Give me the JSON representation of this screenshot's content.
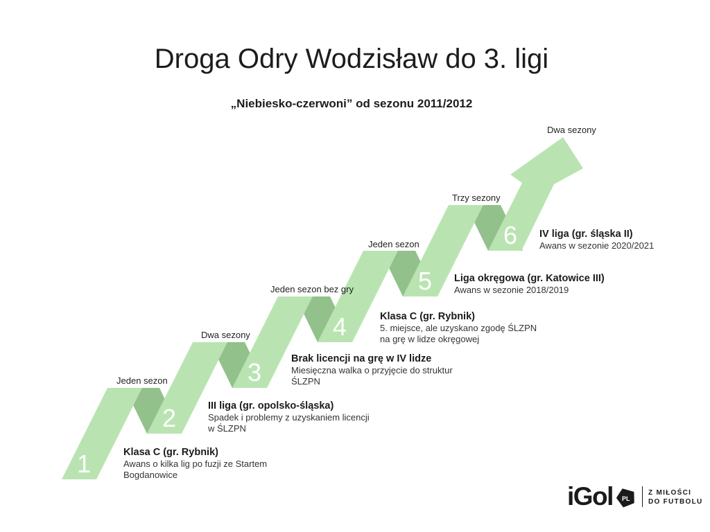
{
  "header": {
    "title": "Droga Odry Wodzisław do 3. ligi",
    "subtitle": "„Niebiesko-czerwoni” od sezonu 2011/2012"
  },
  "steps": [
    {
      "number": "1",
      "duration_above": "Jeden sezon",
      "title": "Klasa C (gr. Rybnik)",
      "lines": [
        "Awans o kilka lig po fuzji ze Startem",
        "Bogdanowice"
      ]
    },
    {
      "number": "2",
      "duration_above": "Dwa sezony",
      "title": "III liga (gr. opolsko-śląska)",
      "lines": [
        "Spadek i problemy z uzyskaniem licencji",
        "w ŚLZPN"
      ]
    },
    {
      "number": "3",
      "duration_above": "Jeden sezon bez gry",
      "title": "Brak licencji na grę w IV lidze",
      "lines": [
        "Miesięczna walka o przyjęcie do struktur",
        "ŚLZPN"
      ]
    },
    {
      "number": "4",
      "duration_above": "Jeden sezon",
      "title": "Klasa C (gr. Rybnik)",
      "lines": [
        "5. miejsce, ale uzyskano zgodę ŚLZPN",
        "na grę w lidze okręgowej"
      ]
    },
    {
      "number": "5",
      "duration_above": "Trzy sezony",
      "title": "Liga okręgowa (gr. Katowice III)",
      "lines": [
        "Awans w sezonie 2018/2019"
      ]
    },
    {
      "number": "6",
      "duration_above": null,
      "title": "IV liga (gr. śląska II)",
      "lines": [
        "Awans w sezonie 2020/2021"
      ]
    }
  ],
  "arrow": {
    "duration_label": "Dwa sezony"
  },
  "logo": {
    "brand": "iGol",
    "badge": "PL",
    "tagline_line1": "Z MIŁOŚCI",
    "tagline_line2": "DO FUTBOLU"
  },
  "colors": {
    "ribbon_light": "#b9e4b1",
    "ribbon_dark": "#92c18b",
    "number_text": "#ffffff"
  }
}
